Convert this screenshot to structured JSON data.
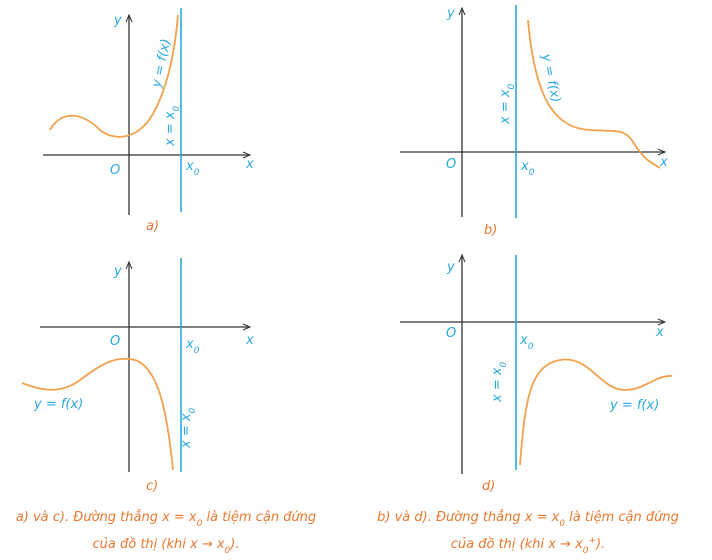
{
  "panels": [
    {
      "label": "a)",
      "y_axis": "y",
      "x_axis": "x",
      "origin": "O",
      "x0": {
        "base": "x",
        "sub": "0"
      },
      "asymptote": {
        "base": "x = x",
        "sub": "0"
      },
      "curve": "y = f(x)"
    },
    {
      "label": "b)",
      "y_axis": "y",
      "x_axis": "x",
      "origin": "O",
      "x0": {
        "base": "x",
        "sub": "0"
      },
      "asymptote": {
        "base": "x = x",
        "sub": "0"
      },
      "curve": "y = f(x)"
    },
    {
      "label": "c)",
      "y_axis": "y",
      "x_axis": "x",
      "origin": "O",
      "x0": {
        "base": "x",
        "sub": "0"
      },
      "asymptote": {
        "base": "x = x",
        "sub": "0"
      },
      "curve": "y = f(x)"
    },
    {
      "label": "d)",
      "y_axis": "y",
      "x_axis": "x",
      "origin": "O",
      "x0": {
        "base": "x",
        "sub": "0"
      },
      "asymptote": {
        "base": "x = x",
        "sub": "0"
      },
      "curve": "y = f(x)"
    }
  ],
  "captions": [
    {
      "line1": "a) và c). Đường thẳng x = x",
      "sub1": "0",
      "line1_end": " là tiệm cận đứng",
      "line2": "của đồ thị (khi x → x",
      "sub2": "0",
      "line2_end": ")."
    },
    {
      "line1": "b) và d). Đường thẳng x = x",
      "sub1": "0",
      "line1_end": " là tiệm cận đứng",
      "line2": "của đồ thị (khi x → x",
      "sub2": "0",
      "sup2": "+",
      "line2_end": ")."
    }
  ]
}
